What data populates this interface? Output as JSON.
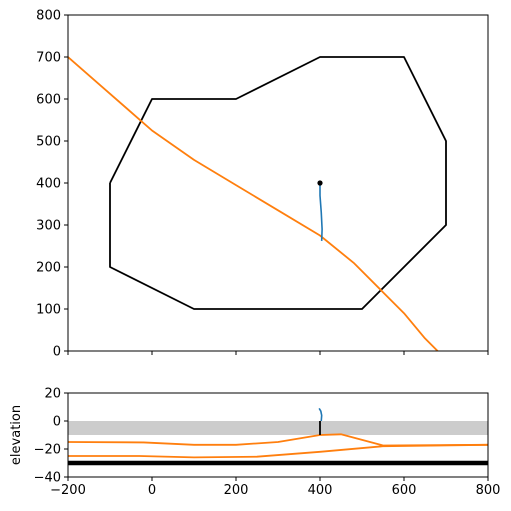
{
  "chart_data": [
    {
      "type": "line",
      "title": "",
      "xlabel": "",
      "ylabel": "",
      "xlim": [
        -200,
        800
      ],
      "ylim": [
        0,
        800
      ],
      "xticks": [
        -200,
        0,
        200,
        400,
        600,
        800
      ],
      "xtick_labels_shown": false,
      "yticks": [
        0,
        100,
        200,
        300,
        400,
        500,
        600,
        700,
        800
      ],
      "grid": false,
      "series": [
        {
          "role": "boundary-polygon",
          "color": "#000000",
          "x": [
            -100,
            0,
            200,
            400,
            600,
            700,
            700,
            500,
            100,
            -100,
            -100
          ],
          "y": [
            400,
            600,
            600,
            700,
            700,
            500,
            300,
            100,
            100,
            200,
            400
          ]
        },
        {
          "role": "fault-trace",
          "color": "#ff7f0e",
          "x": [
            -200,
            -120,
            -40,
            0,
            100,
            200,
            300,
            400,
            480,
            550,
            600,
            650,
            680
          ],
          "y": [
            700,
            630,
            560,
            525,
            455,
            395,
            335,
            275,
            210,
            140,
            90,
            30,
            0
          ]
        },
        {
          "role": "well-path",
          "color": "#1f77b4",
          "x": [
            400,
            400,
            403,
            405,
            404
          ],
          "y": [
            400,
            370,
            330,
            290,
            262
          ]
        },
        {
          "role": "well-head",
          "color": "#000000",
          "x": [
            400
          ],
          "y": [
            400
          ]
        }
      ]
    },
    {
      "type": "line",
      "title": "",
      "xlabel": "",
      "ylabel": "elevation",
      "xlim": [
        -200,
        800
      ],
      "ylim": [
        -40,
        20
      ],
      "xticks": [
        -200,
        0,
        200,
        400,
        600,
        800
      ],
      "yticks": [
        -40,
        -20,
        0,
        20
      ],
      "grid": false,
      "shaded_band": {
        "y": [
          -10,
          0
        ],
        "color": "#cccccc"
      },
      "series": [
        {
          "role": "upper-horizon",
          "color": "#ff7f0e",
          "x": [
            -200,
            -20,
            100,
            200,
            300,
            400,
            450,
            550,
            800
          ],
          "y": [
            -15,
            -15.3,
            -17,
            -17,
            -15,
            -10,
            -9.5,
            -17.5,
            -17
          ]
        },
        {
          "role": "lower-horizon",
          "color": "#ff7f0e",
          "x": [
            -200,
            -30,
            100,
            250,
            400,
            550,
            800
          ],
          "y": [
            -25,
            -25,
            -26,
            -25.5,
            -22,
            -18,
            -17
          ]
        },
        {
          "role": "base",
          "color": "#000000",
          "x": [
            -200,
            800
          ],
          "y": [
            -30,
            -30
          ]
        },
        {
          "role": "well-casing",
          "color": "#000000",
          "x": [
            400,
            400
          ],
          "y": [
            -10,
            0
          ]
        },
        {
          "role": "well-path",
          "color": "#1f77b4",
          "x": [
            398,
            402,
            404,
            403
          ],
          "y": [
            9,
            7,
            4,
            0
          ]
        }
      ]
    }
  ]
}
